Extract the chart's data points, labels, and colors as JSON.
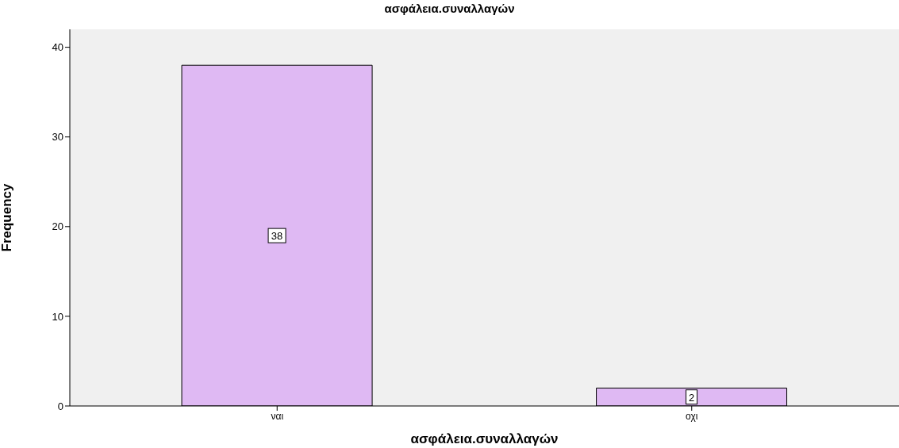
{
  "chart_data": {
    "type": "bar",
    "title": "ασφάλεια.συναλλαγών",
    "xlabel": "ασφάλεια.συναλλαγών",
    "ylabel": "Frequency",
    "categories": [
      "ναι",
      "οχι"
    ],
    "values": [
      38,
      2
    ],
    "color": "#dfb9f3",
    "ylim": [
      0,
      42
    ],
    "yticks": [
      0,
      10,
      20,
      30,
      40
    ],
    "grid": false,
    "data_labels": true
  }
}
